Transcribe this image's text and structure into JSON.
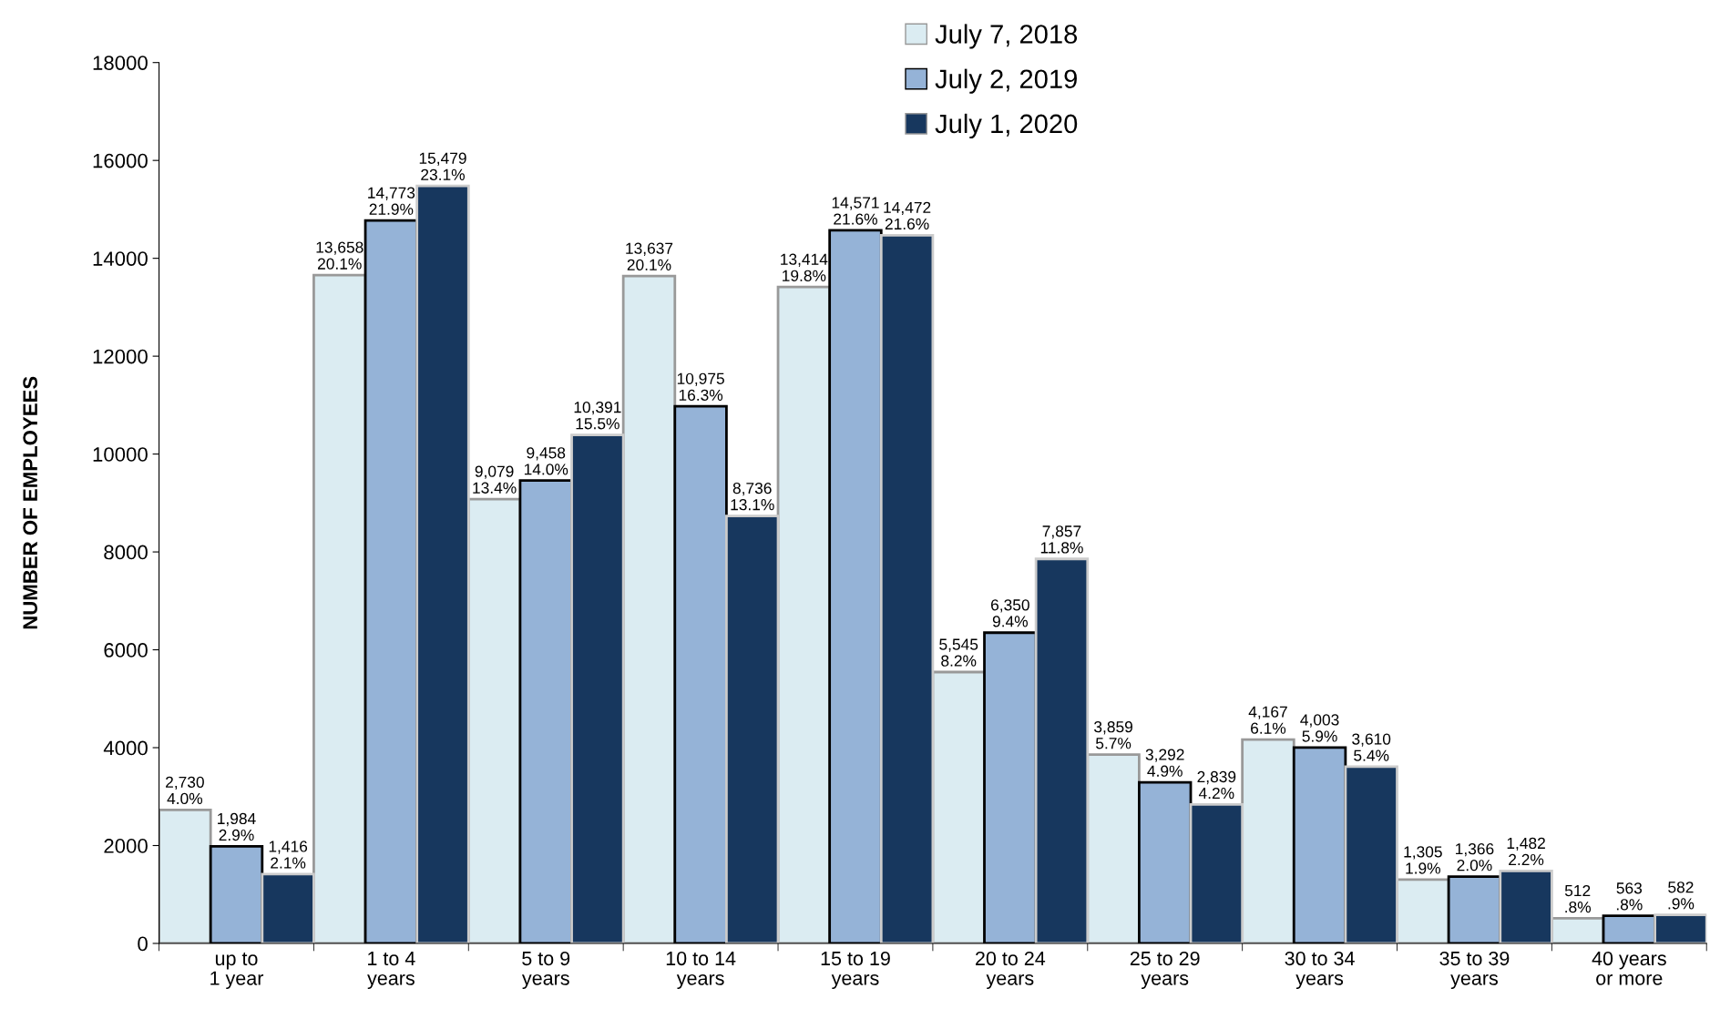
{
  "chart_data": {
    "type": "bar",
    "ylabel": "NUMBER OF EMPLOYEES",
    "categories": [
      "up to\n1 year",
      "1 to 4\nyears",
      "5 to 9\nyears",
      "10 to 14\nyears",
      "15 to 19\nyears",
      "20 to 24\nyears",
      "25 to 29\nyears",
      "30 to 34\nyears",
      "35 to 39\nyears",
      "40 years\nor more"
    ],
    "series": [
      {
        "name": "July 7, 2018",
        "color": "#dbecf2",
        "values": [
          2730,
          13658,
          9079,
          13637,
          13414,
          5545,
          3859,
          4167,
          1305,
          512
        ],
        "value_labels": [
          "2,730\n4.0%",
          "13,658\n20.1%",
          "9,079\n13.4%",
          "13,637\n20.1%",
          "13,414\n19.8%",
          "5,545\n8.2%",
          "3,859\n5.7%",
          "4,167\n6.1%",
          "1,305\n1.9%",
          "512\n.8%"
        ]
      },
      {
        "name": "July 2, 2019",
        "color": "#95b3d7",
        "values": [
          1984,
          14773,
          9458,
          10975,
          14571,
          6350,
          3292,
          4003,
          1366,
          563
        ],
        "value_labels": [
          "1,984\n2.9%",
          "14,773\n21.9%",
          "9,458\n14.0%",
          "10,975\n16.3%",
          "14,571\n21.6%",
          "6,350\n9.4%",
          "3,292\n4.9%",
          "4,003\n5.9%",
          "1,366\n2.0%",
          "563\n.8%"
        ]
      },
      {
        "name": "July 1, 2020",
        "color": "#17375e",
        "values": [
          1416,
          15479,
          10391,
          8736,
          14472,
          7857,
          2839,
          3610,
          1482,
          582
        ],
        "value_labels": [
          "1,416\n2.1%",
          "15,479\n23.1%",
          "10,391\n15.5%",
          "8,736\n13.1%",
          "14,472\n21.6%",
          "7,857\n11.8%",
          "2,839\n4.2%",
          "3,610\n5.4%",
          "1,482\n2.2%",
          "582\n.9%"
        ]
      }
    ],
    "ylim": [
      0,
      18000
    ],
    "yticks": [
      0,
      2000,
      4000,
      6000,
      8000,
      10000,
      12000,
      14000,
      16000,
      18000
    ],
    "grid": false,
    "legend": "top"
  }
}
